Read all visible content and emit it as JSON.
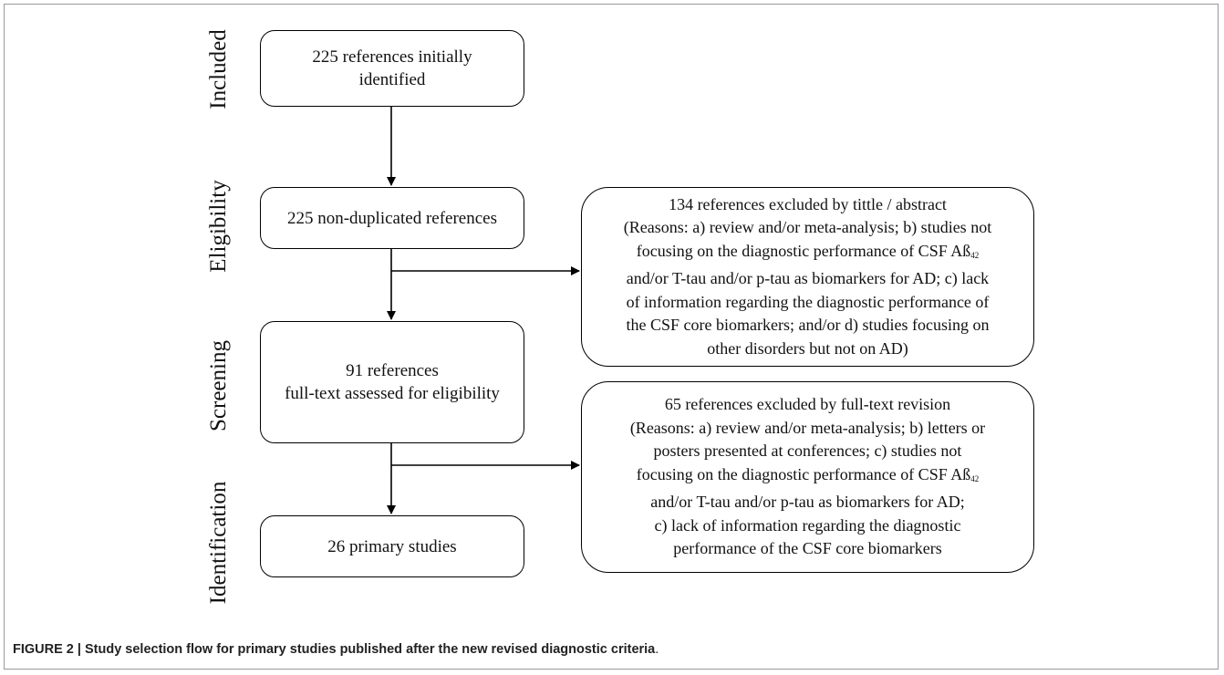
{
  "figure": {
    "stages": [
      "Included",
      "Eligibility",
      "Screening",
      "Identification"
    ],
    "boxes": {
      "initial": [
        "225 references initially",
        "identified"
      ],
      "nonduplicated": [
        "225 non-duplicated references"
      ],
      "fulltext": [
        "91 references",
        "full-text assessed for eligibility"
      ],
      "primary": [
        "26 primary studies"
      ]
    },
    "exclusion1": {
      "line1": "134 references excluded by tittle / abstract",
      "line2": "(Reasons: a) review and/or meta-analysis; b) studies not",
      "line3_pre": "focusing on the diagnostic performance of CSF Aß",
      "line3_sub": "42",
      "line4": "and/or T-tau and/or p-tau as biomarkers for AD; c) lack",
      "line5": "of information regarding the diagnostic performance of",
      "line6": "the CSF core biomarkers; and/or d) studies focusing on",
      "line7": "other disorders but not on AD)"
    },
    "exclusion2": {
      "line1": "65 references excluded by full-text revision",
      "line2": "(Reasons: a) review and/or meta-analysis; b) letters or",
      "line3": "posters presented at conferences; c) studies not",
      "line4_pre": "focusing on the diagnostic performance of CSF Aß",
      "line4_sub": "42",
      "line5": "and/or T-tau and/or p-tau as biomarkers for AD;",
      "line6": "c) lack of information regarding the diagnostic",
      "line7": "performance of the CSF core biomarkers"
    }
  },
  "caption": {
    "bold": "FIGURE 2 | Study selection flow for primary studies published after the new revised diagnostic criteria",
    "tail": "."
  }
}
